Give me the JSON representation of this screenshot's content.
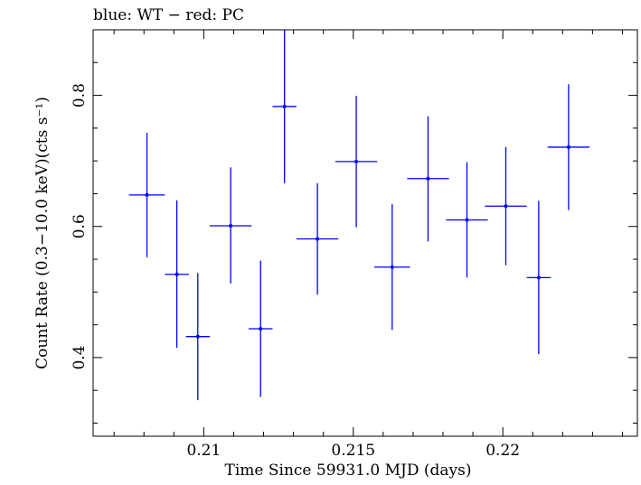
{
  "chart_data": {
    "type": "scatter",
    "title": "blue: WT − red: PC",
    "xlabel": "Time Since 59931.0 MJD (days)",
    "ylabel": "Count Rate (0.3−10.0 keV)(cts s⁻¹)",
    "xlim": [
      0.2063,
      0.2245
    ],
    "ylim": [
      0.28,
      0.9
    ],
    "xticks": [
      {
        "value": 0.21,
        "label": "0.21"
      },
      {
        "value": 0.215,
        "label": "0.215"
      },
      {
        "value": 0.22,
        "label": "0.22"
      }
    ],
    "yticks": [
      {
        "value": 0.4,
        "label": "0.4"
      },
      {
        "value": 0.6,
        "label": "0.6"
      },
      {
        "value": 0.8,
        "label": "0.8"
      }
    ],
    "series": [
      {
        "color": "#0000ff",
        "points": [
          {
            "x": 0.2081,
            "y": 0.648,
            "xerr": 0.0006,
            "yerr_lo": 0.095,
            "yerr_hi": 0.095
          },
          {
            "x": 0.2091,
            "y": 0.527,
            "xerr": 0.0004,
            "yerr_lo": 0.112,
            "yerr_hi": 0.113
          },
          {
            "x": 0.2098,
            "y": 0.432,
            "xerr": 0.0004,
            "yerr_lo": 0.097,
            "yerr_hi": 0.097
          },
          {
            "x": 0.2109,
            "y": 0.601,
            "xerr": 0.0007,
            "yerr_lo": 0.088,
            "yerr_hi": 0.089
          },
          {
            "x": 0.2119,
            "y": 0.444,
            "xerr": 0.0004,
            "yerr_lo": 0.104,
            "yerr_hi": 0.104
          },
          {
            "x": 0.2127,
            "y": 0.783,
            "xerr": 0.0004,
            "yerr_lo": 0.117,
            "yerr_hi": 0.117
          },
          {
            "x": 0.2138,
            "y": 0.581,
            "xerr": 0.0007,
            "yerr_lo": 0.085,
            "yerr_hi": 0.085
          },
          {
            "x": 0.2151,
            "y": 0.699,
            "xerr": 0.0007,
            "yerr_lo": 0.1,
            "yerr_hi": 0.1
          },
          {
            "x": 0.2163,
            "y": 0.538,
            "xerr": 0.0006,
            "yerr_lo": 0.096,
            "yerr_hi": 0.096
          },
          {
            "x": 0.2175,
            "y": 0.673,
            "xerr": 0.0007,
            "yerr_lo": 0.096,
            "yerr_hi": 0.095
          },
          {
            "x": 0.2188,
            "y": 0.61,
            "xerr": 0.0007,
            "yerr_lo": 0.088,
            "yerr_hi": 0.088
          },
          {
            "x": 0.2201,
            "y": 0.631,
            "xerr": 0.0007,
            "yerr_lo": 0.09,
            "yerr_hi": 0.09
          },
          {
            "x": 0.2212,
            "y": 0.522,
            "xerr": 0.0004,
            "yerr_lo": 0.117,
            "yerr_hi": 0.117
          },
          {
            "x": 0.2222,
            "y": 0.721,
            "xerr": 0.0007,
            "yerr_lo": 0.096,
            "yerr_hi": 0.096
          }
        ]
      }
    ]
  }
}
